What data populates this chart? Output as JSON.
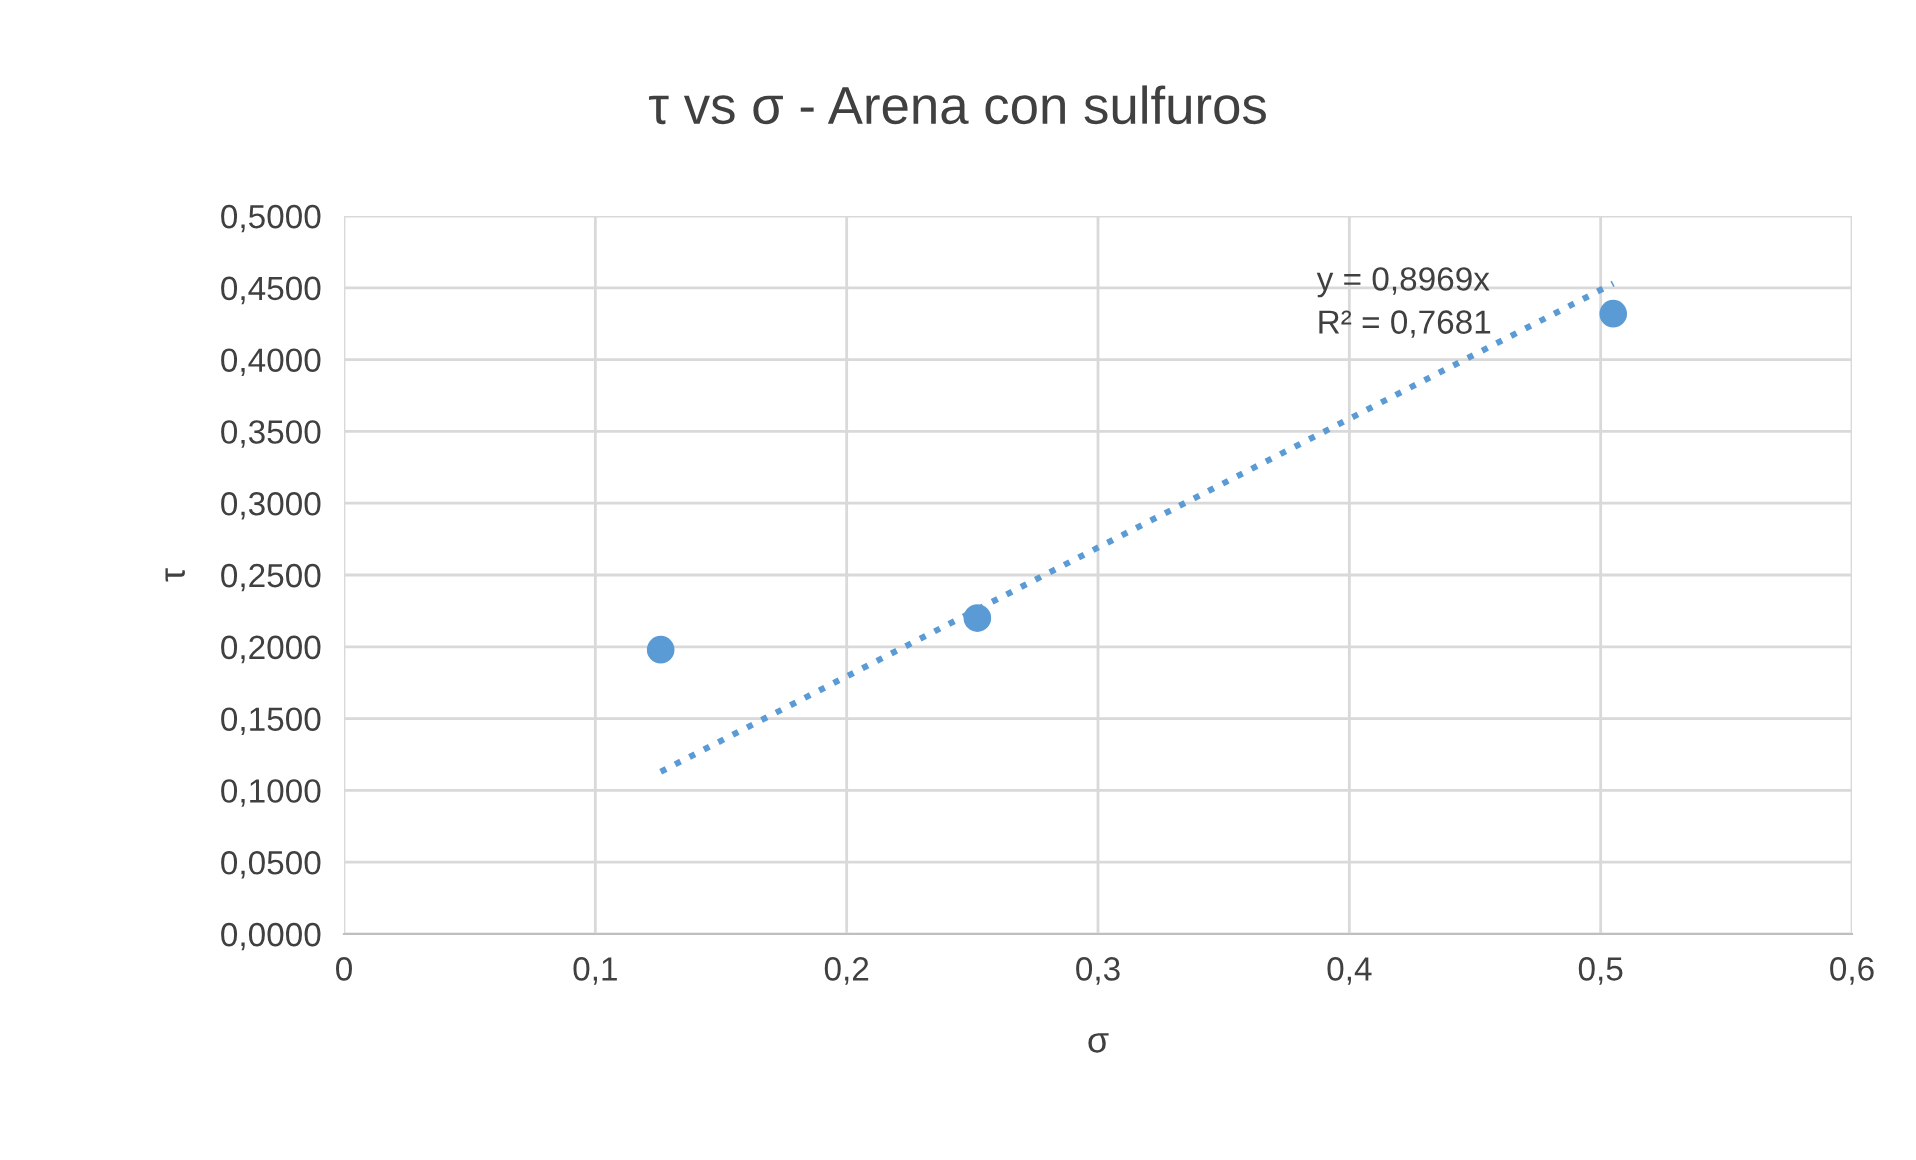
{
  "chart_data": {
    "type": "scatter",
    "title": "τ vs σ - Arena con sulfuros",
    "xlabel": "σ",
    "ylabel": "τ",
    "series": [
      {
        "x": [
          0.126,
          0.252,
          0.505
        ],
        "values": [
          0.198,
          0.22,
          0.432
        ],
        "color": "#5b9bd5",
        "marker": "circle"
      },
      {
        "type": "line",
        "x": [
          0.126,
          0.505
        ],
        "values": [
          0.113,
          0.453
        ],
        "color": "#5b9bd5",
        "marker": "none",
        "line_style": "dotted"
      }
    ],
    "xlim": [
      0,
      0.6
    ],
    "ylim": [
      0,
      0.5
    ],
    "xticks": [
      0,
      {
        "value": 0.1,
        "label": "0,1"
      },
      {
        "value": 0.2,
        "label": "0,2"
      },
      {
        "value": 0.3,
        "label": "0,3"
      },
      {
        "value": 0.4,
        "label": "0,4"
      },
      {
        "value": 0.5,
        "label": "0,5"
      },
      {
        "value": 0.6,
        "label": "0,6"
      }
    ],
    "yticks": [
      {
        "value": 0,
        "label": "0,0000"
      },
      {
        "value": 0.05,
        "label": "0,0500"
      },
      {
        "value": 0.1,
        "label": "0,1000"
      },
      {
        "value": 0.15,
        "label": "0,1500"
      },
      {
        "value": 0.2,
        "label": "0,2000"
      },
      {
        "value": 0.25,
        "label": "0,2500"
      },
      {
        "value": 0.3,
        "label": "0,3000"
      },
      {
        "value": 0.35,
        "label": "0,3500"
      },
      {
        "value": 0.4,
        "label": "0,4000"
      },
      {
        "value": 0.45,
        "label": "0,4500"
      },
      {
        "value": 0.5,
        "label": "0,5000"
      }
    ],
    "grid": true,
    "annotations": [
      "y = 0,8969x\nR² = 0,7681"
    ]
  }
}
